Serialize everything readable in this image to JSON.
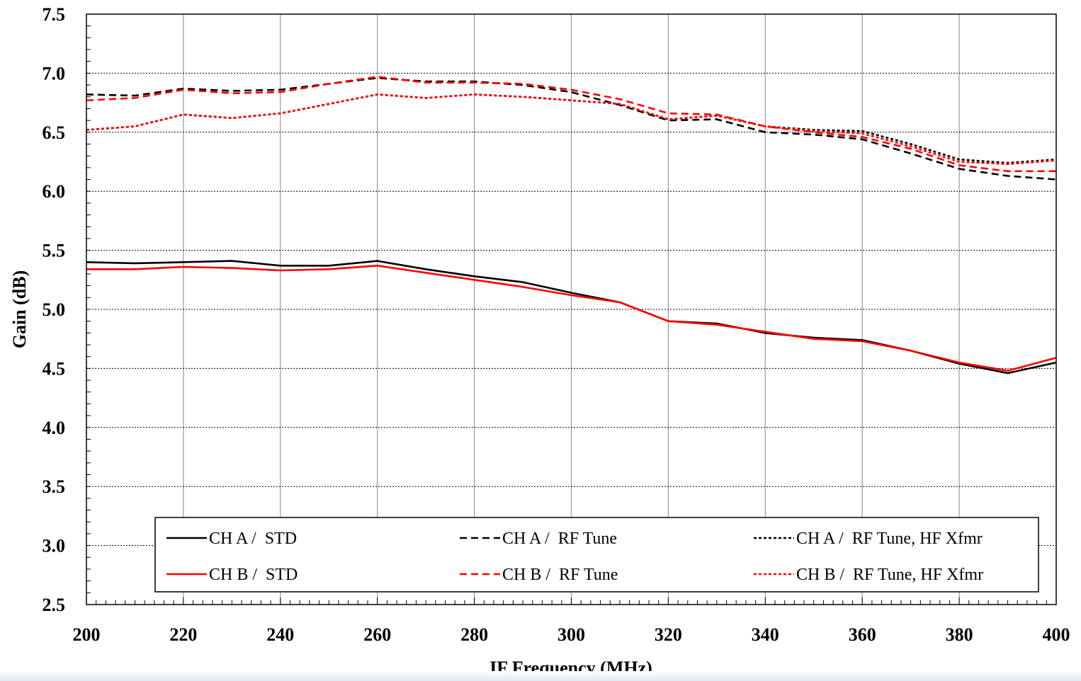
{
  "chart_data": {
    "type": "line",
    "title": "",
    "xlabel": "IF Frequency (MHz)",
    "ylabel": "Gain (dB)",
    "xlim": [
      200,
      400
    ],
    "ylim": [
      2.5,
      7.5
    ],
    "xticks": [
      200,
      220,
      240,
      260,
      280,
      300,
      320,
      340,
      360,
      380,
      400
    ],
    "yticks": [
      "2.5",
      "3.0",
      "3.5",
      "4.0",
      "4.5",
      "5.0",
      "5.5",
      "6.0",
      "6.5",
      "7.0",
      "7.5"
    ],
    "grid": {
      "x": "solid-major",
      "y": "dotted-major"
    },
    "legend_position": "bottom",
    "x": [
      200,
      210,
      220,
      230,
      240,
      250,
      260,
      270,
      280,
      290,
      300,
      310,
      320,
      330,
      340,
      350,
      360,
      370,
      380,
      390,
      400
    ],
    "series": [
      {
        "name": "CH A /  STD",
        "color": "#000000",
        "dash": "solid",
        "values": [
          5.4,
          5.39,
          5.4,
          5.41,
          5.37,
          5.37,
          5.41,
          5.34,
          5.28,
          5.23,
          5.14,
          5.06,
          4.9,
          4.88,
          4.8,
          4.76,
          4.74,
          4.65,
          4.54,
          4.46,
          4.55
        ]
      },
      {
        "name": "CH A /  RF Tune",
        "color": "#000000",
        "dash": "dashed",
        "values": [
          6.82,
          6.81,
          6.87,
          6.85,
          6.86,
          6.91,
          6.96,
          6.93,
          6.93,
          6.9,
          6.84,
          6.73,
          6.6,
          6.61,
          6.5,
          6.48,
          6.44,
          6.32,
          6.19,
          6.13,
          6.1
        ]
      },
      {
        "name": "CH A /  RF Tune, HF Xfmr",
        "color": "#000000",
        "dash": "dotted",
        "values": [
          6.52,
          6.55,
          6.65,
          6.62,
          6.66,
          6.74,
          6.82,
          6.79,
          6.82,
          6.8,
          6.77,
          6.74,
          6.61,
          6.64,
          6.55,
          6.52,
          6.51,
          6.4,
          6.27,
          6.24,
          6.27
        ]
      },
      {
        "name": "CH B /  STD",
        "color": "#ff0000",
        "dash": "solid",
        "values": [
          5.34,
          5.34,
          5.36,
          5.35,
          5.33,
          5.34,
          5.37,
          5.31,
          5.25,
          5.19,
          5.12,
          5.06,
          4.9,
          4.87,
          4.81,
          4.75,
          4.73,
          4.65,
          4.55,
          4.48,
          4.59
        ]
      },
      {
        "name": "CH B /  RF Tune",
        "color": "#ff0000",
        "dash": "dashed",
        "values": [
          6.77,
          6.79,
          6.86,
          6.83,
          6.84,
          6.91,
          6.97,
          6.92,
          6.92,
          6.91,
          6.86,
          6.78,
          6.66,
          6.65,
          6.55,
          6.5,
          6.46,
          6.36,
          6.22,
          6.17,
          6.17
        ]
      },
      {
        "name": "CH B /  RF Tune, HF Xfmr",
        "color": "#ff0000",
        "dash": "dotted",
        "values": [
          6.52,
          6.55,
          6.65,
          6.62,
          6.66,
          6.74,
          6.82,
          6.79,
          6.82,
          6.8,
          6.77,
          6.74,
          6.61,
          6.64,
          6.55,
          6.51,
          6.49,
          6.38,
          6.25,
          6.23,
          6.26
        ]
      }
    ]
  }
}
